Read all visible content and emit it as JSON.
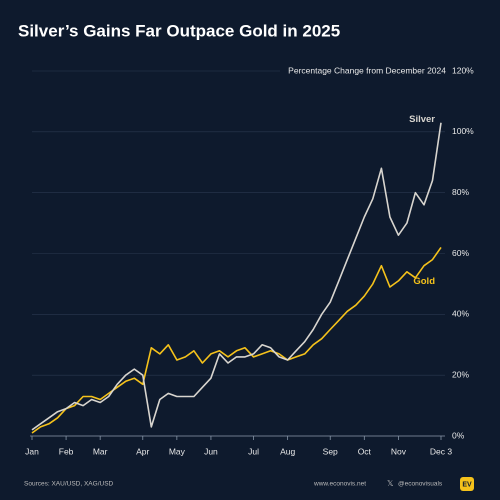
{
  "chart_data": {
    "type": "line",
    "title": "Silver’s Gains Far Outpace Gold in 2025",
    "subtitle": "Percentage Change from December 2024",
    "categories": [
      "Jan",
      null,
      null,
      null,
      "Feb",
      null,
      null,
      null,
      "Mar",
      null,
      null,
      null,
      null,
      "Apr",
      null,
      null,
      null,
      "May",
      null,
      null,
      null,
      "Jun",
      null,
      null,
      null,
      null,
      "Jul",
      null,
      null,
      null,
      "Aug",
      null,
      null,
      null,
      null,
      "Sep",
      null,
      null,
      null,
      "Oct",
      null,
      null,
      null,
      "Nov",
      null,
      null,
      null,
      null,
      "Dec 3"
    ],
    "series": [
      {
        "name": "Silver",
        "color": "#d8d5cf",
        "values": [
          2,
          4,
          6,
          8,
          9,
          11,
          10,
          12,
          11,
          13,
          17,
          20,
          22,
          20,
          3,
          12,
          14,
          13,
          13,
          13,
          16,
          19,
          27,
          24,
          26,
          26,
          27,
          30,
          29,
          26,
          25,
          28,
          31,
          35,
          40,
          44,
          51,
          58,
          65,
          72,
          78,
          88,
          72,
          66,
          70,
          80,
          76,
          84,
          103
        ]
      },
      {
        "name": "Gold",
        "color": "#f5c21b",
        "values": [
          1,
          3,
          4,
          6,
          9,
          10,
          13,
          13,
          12,
          14,
          16,
          18,
          19,
          17,
          29,
          27,
          30,
          25,
          26,
          28,
          24,
          27,
          28,
          26,
          28,
          29,
          26,
          27,
          28,
          27,
          25,
          26,
          27,
          30,
          32,
          35,
          38,
          41,
          43,
          46,
          50,
          56,
          49,
          51,
          54,
          52,
          56,
          58,
          62
        ]
      }
    ],
    "ylim": [
      0,
      120
    ],
    "yticks": [
      {
        "value": 0,
        "label": "0%"
      },
      {
        "value": 20,
        "label": "20%"
      },
      {
        "value": 40,
        "label": "40%"
      },
      {
        "value": 60,
        "label": "60%"
      },
      {
        "value": 80,
        "label": "80%"
      },
      {
        "value": 100,
        "label": "100%"
      },
      {
        "value": 120,
        "label": "120%"
      }
    ],
    "grid": true,
    "source": "Sources: XAU/USD, XAG/USD",
    "website": "www.econovis.net",
    "handle": "@econovisuals",
    "logo": "EV"
  }
}
